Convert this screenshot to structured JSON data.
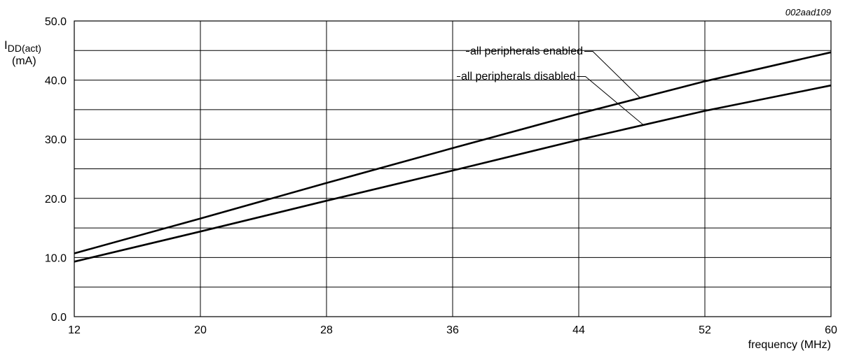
{
  "chart_data": {
    "type": "line",
    "figure_code": "002aad109",
    "ylabel": {
      "main": "I",
      "sub": "DD(act)",
      "unit": "(mA)"
    },
    "xlabel": "frequency (MHz)",
    "xlim": [
      12,
      60
    ],
    "ylim": [
      0,
      50
    ],
    "xticks": [
      12,
      20,
      28,
      36,
      44,
      52,
      60
    ],
    "yticks": [
      "0.0",
      "10.0",
      "20.0",
      "30.0",
      "40.0",
      "50.0"
    ],
    "grid": true,
    "series": [
      {
        "name": "all peripherals enabled",
        "x": [
          12,
          20,
          28,
          36,
          44,
          52,
          60
        ],
        "y": [
          10.7,
          16.6,
          22.6,
          28.5,
          34.3,
          39.8,
          44.7
        ]
      },
      {
        "name": "all peripherals disabled",
        "x": [
          12,
          20,
          28,
          36,
          44,
          52,
          60
        ],
        "y": [
          9.3,
          14.4,
          19.6,
          24.7,
          29.9,
          34.8,
          39.1
        ]
      }
    ],
    "colors": {
      "line": "#000000",
      "grid": "#000000",
      "background": "#ffffff"
    }
  }
}
